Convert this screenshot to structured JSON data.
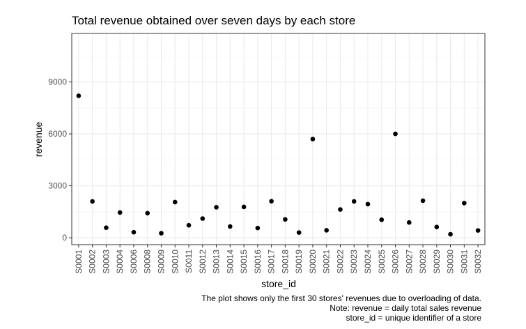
{
  "chart_data": {
    "type": "scatter",
    "title": "Total revenue obtained over seven days by each store",
    "xlabel": "store_id",
    "ylabel": "revenue",
    "ylim": [
      -400,
      11800
    ],
    "yticks": [
      0,
      3000,
      6000,
      9000
    ],
    "grid": true,
    "legend": "none",
    "categories": [
      "S0001",
      "S0002",
      "S0003",
      "S0004",
      "S0006",
      "S0008",
      "S0009",
      "S0010",
      "S0011",
      "S0012",
      "S0013",
      "S0014",
      "S0015",
      "S0016",
      "S0017",
      "S0018",
      "S0019",
      "S0020",
      "S0021",
      "S0022",
      "S0023",
      "S0024",
      "S0025",
      "S0026",
      "S0027",
      "S0028",
      "S0029",
      "S0030",
      "S0031",
      "S0032"
    ],
    "values": [
      8200,
      2100,
      580,
      1460,
      320,
      1420,
      260,
      2060,
      720,
      1110,
      1760,
      650,
      1780,
      560,
      2110,
      1060,
      300,
      5700,
      430,
      1630,
      2100,
      1940,
      1040,
      6000,
      880,
      2140,
      620,
      200,
      2000,
      420
    ],
    "caption": [
      "The plot shows only the first 30 stores' revenues due to overloading of data.",
      "Note: revenue = daily total sales revenue",
      "store_id = unique identifier of a store"
    ],
    "colors": {
      "point": "#000000",
      "grid_major": "#ebebeb",
      "grid_minor": "#f5f5f5",
      "panel_border": "#333333",
      "tick_text": "#4d4d4d"
    }
  }
}
